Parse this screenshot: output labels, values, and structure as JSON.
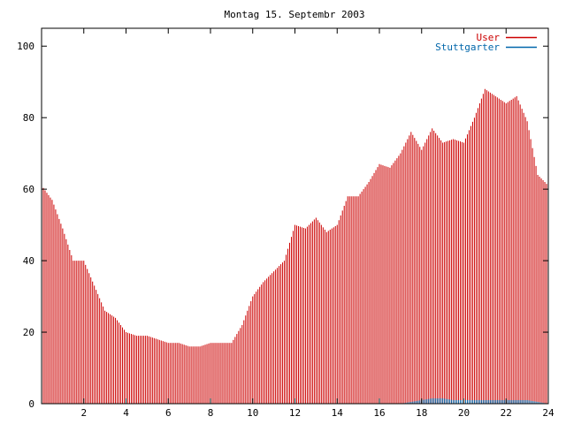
{
  "chart_data": {
    "type": "bar",
    "title": "Montag 15. Septembr 2003",
    "xlabel": "",
    "ylabel": "",
    "xlim": [
      0,
      24
    ],
    "ylim": [
      0,
      105
    ],
    "x_ticks": [
      2,
      4,
      6,
      8,
      10,
      12,
      14,
      16,
      18,
      20,
      22,
      24
    ],
    "x_tick_labels": [
      "2",
      "4",
      "6",
      "8",
      "10",
      "12",
      "14",
      "16",
      "18",
      "20",
      "22",
      "24"
    ],
    "y_ticks": [
      0,
      20,
      40,
      60,
      80,
      100
    ],
    "y_tick_labels": [
      "0",
      "20",
      "40",
      "60",
      "80",
      "100"
    ],
    "grid": false,
    "legend_position": "top-right",
    "series": [
      {
        "name": "User",
        "color": "#cc0000",
        "x": [
          0,
          0.5,
          1,
          1.5,
          2,
          2.5,
          3,
          3.5,
          4,
          4.5,
          5,
          5.5,
          6,
          6.5,
          7,
          7.5,
          8,
          8.5,
          9,
          9.5,
          10,
          10.5,
          11,
          11.5,
          12,
          12.5,
          13,
          13.5,
          14,
          14.5,
          15,
          15.5,
          16,
          16.5,
          17,
          17.5,
          18,
          18.5,
          19,
          19.5,
          20,
          20.5,
          21,
          21.5,
          22,
          22.5,
          23,
          23.5,
          24
        ],
        "values": [
          61,
          57,
          49,
          40,
          40,
          33,
          26,
          24,
          20,
          19,
          19,
          18,
          17,
          17,
          16,
          16,
          17,
          17,
          17,
          22,
          30,
          34,
          37,
          40,
          50,
          49,
          52,
          48,
          50,
          58,
          58,
          62,
          67,
          66,
          70,
          76,
          71,
          77,
          73,
          74,
          73,
          80,
          88,
          86,
          84,
          86,
          79,
          64,
          61
        ]
      },
      {
        "name": "Stuttgarter",
        "color": "#0066aa",
        "x": [
          0,
          17,
          17.5,
          18,
          18.5,
          19,
          19.5,
          20,
          20.5,
          21,
          21.5,
          22,
          22.5,
          23,
          23.5,
          24
        ],
        "values": [
          0,
          0,
          0.5,
          1,
          1.5,
          1.5,
          1,
          1,
          1,
          1,
          1,
          1,
          1,
          1,
          0.5,
          0
        ]
      }
    ]
  }
}
